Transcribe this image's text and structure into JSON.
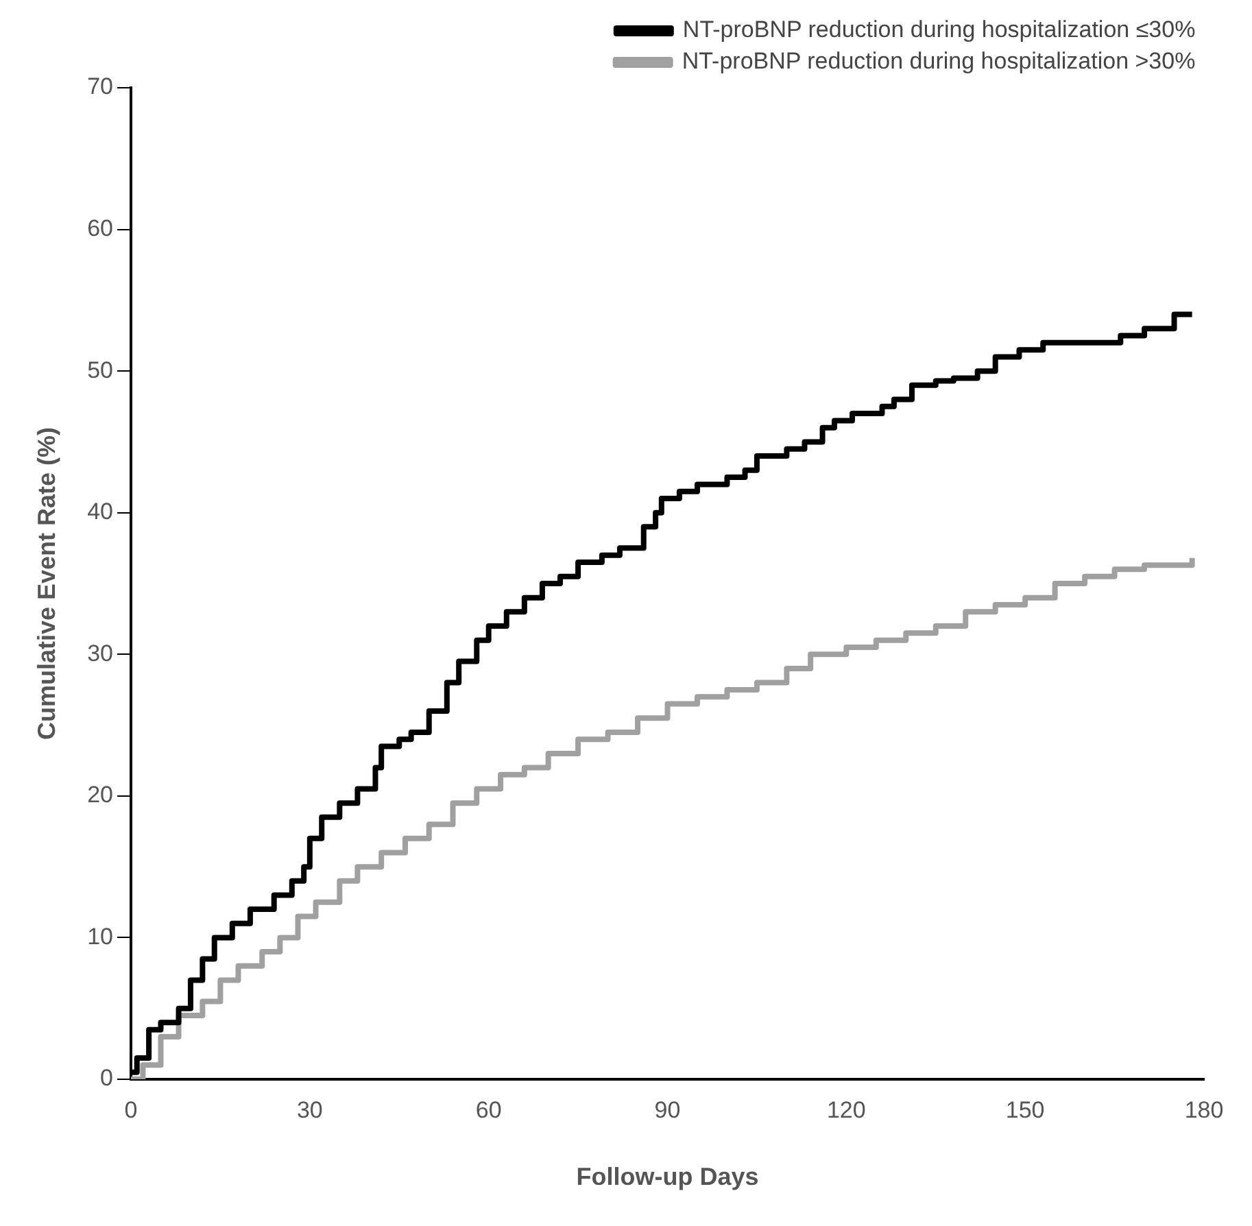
{
  "chart_data": {
    "type": "step",
    "xlabel": "Follow-up Days",
    "ylabel": "Cumulative Event Rate (%)",
    "xlim": [
      0,
      180
    ],
    "xticks": [
      0,
      30,
      60,
      90,
      120,
      150,
      180
    ],
    "ylim": [
      0,
      70
    ],
    "yticks": [
      0,
      10,
      20,
      30,
      40,
      50,
      60,
      70
    ],
    "grid": false,
    "legend": "top right",
    "marker": "none",
    "line_style": "solid",
    "series": [
      {
        "name": "NT-proBNP reduction during hospitalization ≤30%",
        "color": "#000000",
        "x": [
          0,
          1,
          3,
          5,
          8,
          10,
          12,
          14,
          17,
          20,
          24,
          27,
          29,
          30,
          32,
          35,
          38,
          41,
          42,
          45,
          47,
          50,
          53,
          55,
          58,
          60,
          63,
          66,
          69,
          72,
          75,
          79,
          82,
          86,
          88,
          89,
          92,
          95,
          100,
          103,
          105,
          110,
          113,
          116,
          118,
          121,
          126,
          128,
          131,
          135,
          138,
          142,
          145,
          149,
          153,
          166,
          170,
          175,
          178
        ],
        "values": [
          0.5,
          1.5,
          3.5,
          4,
          5,
          7,
          8.5,
          10,
          11,
          12,
          13,
          14,
          15,
          17,
          18.5,
          19.5,
          20.5,
          22,
          23.5,
          24,
          24.5,
          26,
          28,
          29.5,
          31,
          32,
          33,
          34,
          35,
          35.5,
          36.5,
          37,
          37.5,
          39,
          40,
          41,
          41.5,
          42,
          42.5,
          43,
          44,
          44.5,
          45,
          46,
          46.5,
          47,
          47.5,
          48,
          49,
          49.3,
          49.5,
          50,
          51,
          51.5,
          52,
          52.5,
          53,
          54,
          54
        ]
      },
      {
        "name": "NT-proBNP reduction during hospitalization >30%",
        "color": "#a0a0a0",
        "x": [
          0,
          2,
          5,
          8,
          12,
          15,
          18,
          22,
          25,
          28,
          31,
          35,
          38,
          42,
          46,
          50,
          54,
          58,
          62,
          66,
          70,
          75,
          80,
          85,
          90,
          95,
          100,
          105,
          110,
          114,
          120,
          125,
          130,
          135,
          140,
          145,
          150,
          155,
          160,
          165,
          170,
          178
        ],
        "values": [
          0,
          1,
          3,
          4.5,
          5.5,
          7,
          8,
          9,
          10,
          11.5,
          12.5,
          14,
          15,
          16,
          17,
          18,
          19.5,
          20.5,
          21.5,
          22,
          23,
          24,
          24.5,
          25.5,
          26.5,
          27,
          27.5,
          28,
          29,
          30,
          30.5,
          31,
          31.5,
          32,
          33,
          33.5,
          34,
          35,
          35.5,
          36,
          36.3,
          36.8
        ]
      }
    ]
  }
}
